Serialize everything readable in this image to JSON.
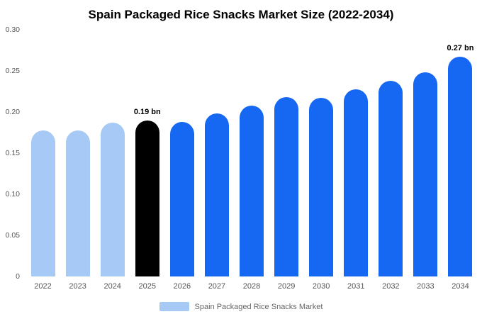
{
  "chart_data": {
    "type": "bar",
    "title": "Spain Packaged Rice Snacks Market Size (2022-2034)",
    "categories": [
      "2022",
      "2023",
      "2024",
      "2025",
      "2026",
      "2027",
      "2028",
      "2029",
      "2030",
      "2031",
      "2032",
      "2033",
      "2034"
    ],
    "values": [
      0.178,
      0.178,
      0.187,
      0.19,
      0.188,
      0.198,
      0.208,
      0.218,
      0.217,
      0.228,
      0.238,
      0.248,
      0.267
    ],
    "unit": "bn",
    "xlabel": "",
    "ylabel": "",
    "ylim": [
      0,
      0.3
    ],
    "yticks": [
      "0",
      "0.05",
      "0.10",
      "0.15",
      "0.20",
      "0.25",
      "0.30"
    ],
    "grid": false,
    "legend_position": "bottom",
    "annotations": [
      {
        "index": 3,
        "text": "0.19 bn"
      },
      {
        "index": 12,
        "text": "0.27 bn"
      }
    ],
    "bar_styles": [
      "light",
      "light",
      "light",
      "dark",
      "primary",
      "primary",
      "primary",
      "primary",
      "primary",
      "primary",
      "primary",
      "primary",
      "primary"
    ],
    "colors": {
      "light": "#a6c9f6",
      "dark": "#000000",
      "primary": "#1667f2"
    }
  },
  "legend": {
    "label": "Spain Packaged Rice Snacks Market",
    "swatch_color": "#a6c9f6"
  }
}
